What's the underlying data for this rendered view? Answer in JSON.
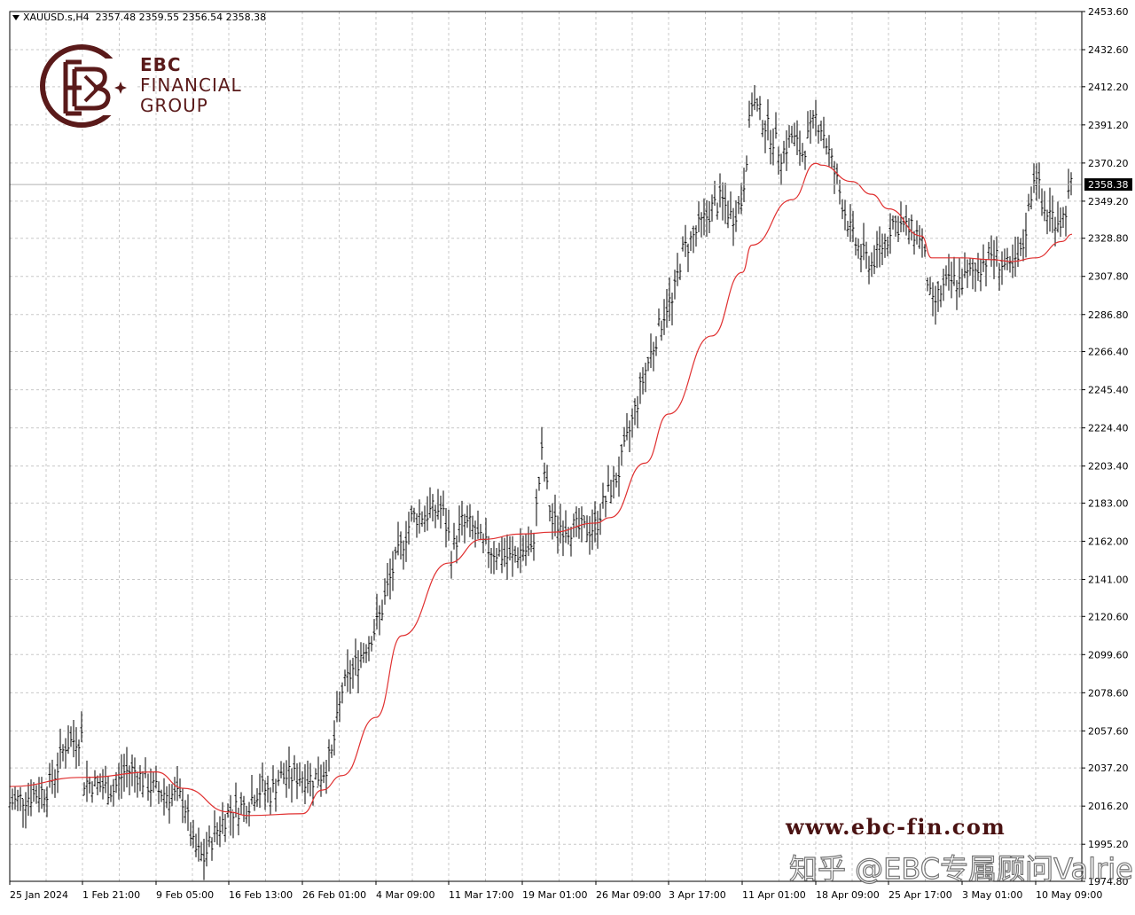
{
  "header": {
    "symbol": "XAUUSD.s,H4",
    "ohlc": "2357.48 2359.55 2356.54 2358.38"
  },
  "logo": {
    "line1": "EBC",
    "line2": "FINANCIAL",
    "line3": "GROUP"
  },
  "watermark": {
    "website": "www.ebc-fin.com",
    "credit": "知乎 @EBC专属顾问Valrie"
  },
  "colors": {
    "candles": "#000000",
    "ma": "#e03030",
    "grid": "#c8c8c8",
    "current_price_box": "#000000",
    "logo": "#5a1a1a"
  },
  "chart_data": {
    "type": "line",
    "title": "",
    "instrument": "XAUUSD.s",
    "timeframe": "H4",
    "current_price": 2358.38,
    "current_price_label": "2358.38",
    "grid": true,
    "ylim": [
      1974.8,
      2453.6
    ],
    "y_ticks": [
      "2453.60",
      "2432.60",
      "2412.20",
      "2391.20",
      "2370.20",
      "2349.20",
      "2328.80",
      "2307.80",
      "2286.80",
      "2266.40",
      "2245.40",
      "2224.40",
      "2203.40",
      "2183.00",
      "2162.00",
      "2141.00",
      "2120.60",
      "2099.60",
      "2078.60",
      "2057.60",
      "2037.20",
      "2016.20",
      "1995.20",
      "1974.80"
    ],
    "x_ticks": [
      "25 Jan 2024",
      "1 Feb 21:00",
      "9 Feb 05:00",
      "16 Feb 13:00",
      "26 Feb 01:00",
      "4 Mar 09:00",
      "11 Mar 17:00",
      "19 Mar 01:00",
      "26 Mar 09:00",
      "3 Apr 17:00",
      "11 Apr 01:00",
      "18 Apr 09:00",
      "25 Apr 17:00",
      "3 May 01:00",
      "10 May 09:00"
    ],
    "price_path": [
      [
        "25 Jan 2024",
        2018
      ],
      [
        "29 Jan",
        2025
      ],
      [
        "30 Jan",
        2035
      ],
      [
        "31 Jan",
        2050
      ],
      [
        "1 Feb 21:00",
        2055
      ],
      [
        "2 Feb",
        2030
      ],
      [
        "5 Feb",
        2025
      ],
      [
        "6 Feb",
        2035
      ],
      [
        "7 Feb",
        2036
      ],
      [
        "8 Feb",
        2030
      ],
      [
        "9 Feb 05:00",
        2025
      ],
      [
        "12 Feb",
        2020
      ],
      [
        "13 Feb",
        1993
      ],
      [
        "14 Feb",
        1987
      ],
      [
        "15 Feb",
        2000
      ],
      [
        "16 Feb 13:00",
        2013
      ],
      [
        "19 Feb",
        2017
      ],
      [
        "20 Feb",
        2024
      ],
      [
        "21 Feb",
        2026
      ],
      [
        "22 Feb",
        2023
      ],
      [
        "23 Feb",
        2032
      ],
      [
        "26 Feb 01:00",
        2033
      ],
      [
        "27 Feb",
        2031
      ],
      [
        "28 Feb",
        2034
      ],
      [
        "29 Feb",
        2045
      ],
      [
        "1 Mar",
        2080
      ],
      [
        "4 Mar 09:00",
        2115
      ],
      [
        "5 Mar",
        2125
      ],
      [
        "6 Mar",
        2145
      ],
      [
        "7 Mar",
        2160
      ],
      [
        "8 Mar",
        2175
      ],
      [
        "11 Mar",
        2180
      ],
      [
        "11 Mar 17:00",
        2165
      ],
      [
        "12 Mar",
        2155
      ],
      [
        "13 Mar",
        2172
      ],
      [
        "14 Mar",
        2170
      ],
      [
        "15 Mar",
        2160
      ],
      [
        "18 Mar",
        2152
      ],
      [
        "19 Mar 01:00",
        2158
      ],
      [
        "20 Mar",
        2155
      ],
      [
        "21 Mar",
        2210
      ],
      [
        "22 Mar",
        2172
      ],
      [
        "25 Mar",
        2168
      ],
      [
        "26 Mar 09:00",
        2170
      ],
      [
        "27 Mar",
        2180
      ],
      [
        "28 Mar",
        2190
      ],
      [
        "29 Mar",
        2200
      ],
      [
        "1 Apr",
        2255
      ],
      [
        "2 Apr",
        2270
      ],
      [
        "3 Apr 17:00",
        2295
      ],
      [
        "4 Apr",
        2290
      ],
      [
        "5 Apr",
        2320
      ],
      [
        "8 Apr",
        2345
      ],
      [
        "9 Apr",
        2350
      ],
      [
        "10 Apr",
        2340
      ],
      [
        "11 Apr 01:00",
        2350
      ],
      [
        "12 Apr",
        2405
      ],
      [
        "15 Apr",
        2375
      ],
      [
        "16 Apr",
        2385
      ],
      [
        "17 Apr",
        2375
      ],
      [
        "18 Apr 09:00",
        2395
      ],
      [
        "19 Apr",
        2390
      ],
      [
        "22 Apr",
        2330
      ],
      [
        "23 Apr",
        2320
      ],
      [
        "24 Apr",
        2315
      ],
      [
        "25 Apr 17:00",
        2330
      ],
      [
        "26 Apr",
        2338
      ],
      [
        "29 Apr",
        2330
      ],
      [
        "30 Apr",
        2290
      ],
      [
        "1 May",
        2300
      ],
      [
        "2 May",
        2305
      ],
      [
        "3 May 01:00",
        2305
      ],
      [
        "6 May",
        2320
      ],
      [
        "7 May",
        2315
      ],
      [
        "8 May",
        2310
      ],
      [
        "9 May",
        2320
      ],
      [
        "10 May 09:00",
        2370
      ],
      [
        "11 May",
        2345
      ],
      [
        "13 May",
        2338
      ],
      [
        "14 May",
        2358.38
      ]
    ],
    "series": [
      {
        "color": "#000000",
        "description_points": "bars path"
      },
      {
        "color": "#e03030",
        "values": [
          [
            "25 Jan 2024",
            2027
          ],
          [
            "1 Feb 21:00",
            2032
          ],
          [
            "9 Feb 05:00",
            2035
          ],
          [
            "12 Feb",
            2026
          ],
          [
            "16 Feb 13:00",
            2013
          ],
          [
            "19 Feb",
            2011
          ],
          [
            "26 Feb 01:00",
            2012
          ],
          [
            "28 Feb",
            2025
          ],
          [
            "1 Mar",
            2033
          ],
          [
            "4 Mar 09:00",
            2065
          ],
          [
            "7 Mar",
            2110
          ],
          [
            "11 Mar 17:00",
            2150
          ],
          [
            "15 Mar",
            2163
          ],
          [
            "19 Mar 01:00",
            2166
          ],
          [
            "22 Mar",
            2167
          ],
          [
            "26 Mar 09:00",
            2172
          ],
          [
            "28 Mar",
            2175
          ],
          [
            "1 Apr",
            2205
          ],
          [
            "3 Apr 17:00",
            2232
          ],
          [
            "8 Apr",
            2275
          ],
          [
            "11 Apr 01:00",
            2310
          ],
          [
            "12 Apr",
            2325
          ],
          [
            "16 Apr",
            2350
          ],
          [
            "18 Apr 09:00",
            2370
          ],
          [
            "19 Apr",
            2369
          ],
          [
            "22 Apr",
            2360
          ],
          [
            "24 Apr",
            2353
          ],
          [
            "25 Apr 17:00",
            2345
          ],
          [
            "29 Apr",
            2330
          ],
          [
            "30 Apr",
            2318
          ],
          [
            "3 May 01:00",
            2318
          ],
          [
            "6 May",
            2317
          ],
          [
            "8 May",
            2316
          ],
          [
            "10 May 09:00",
            2318
          ],
          [
            "13 May",
            2327
          ],
          [
            "14 May",
            2331
          ]
        ]
      }
    ]
  }
}
